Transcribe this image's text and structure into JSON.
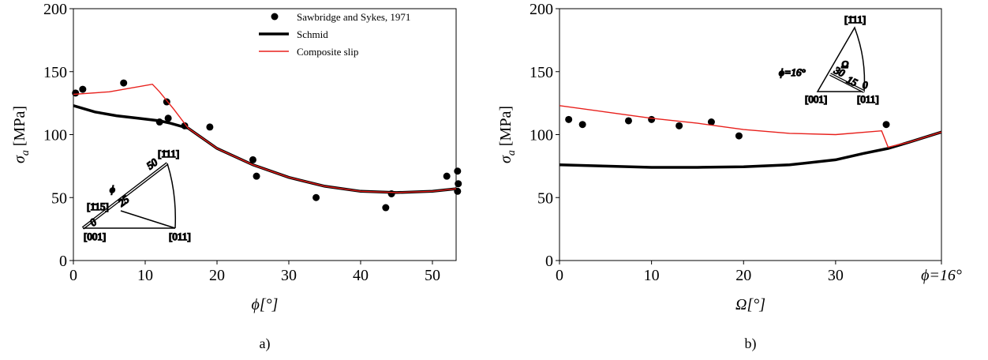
{
  "chart_data": [
    {
      "type": "scatter",
      "caption": "a)",
      "xlabel": "ϕ[°]",
      "ylabel_symbol": "σ",
      "ylabel_subscript": "a",
      "ylabel_unit": "[MPa]",
      "xlim": [
        0,
        53.3
      ],
      "ylim": [
        0,
        200
      ],
      "xticks": [
        0,
        10,
        20,
        30,
        40,
        50
      ],
      "yticks": [
        0,
        50,
        100,
        150,
        200
      ],
      "legend": "upper right",
      "series": [
        {
          "name": "Sawbridge and Sykes, 1971",
          "mode": "markers",
          "color": "#000000",
          "x": [
            0.3,
            1.3,
            7,
            12,
            13,
            13.2,
            15.5,
            19,
            25,
            25.5,
            33.8,
            43.5,
            44.3,
            52,
            53.5,
            53.5,
            53.6
          ],
          "values": [
            133,
            136,
            141,
            110,
            126,
            113,
            107,
            106,
            80,
            67,
            50,
            42,
            53,
            67,
            71,
            55,
            61
          ]
        },
        {
          "name": "Schmid",
          "mode": "lines",
          "color": "#000000",
          "x": [
            0,
            3,
            6,
            9,
            12,
            13.5,
            16,
            20,
            25,
            30,
            35,
            40,
            45,
            50,
            53.3
          ],
          "values": [
            123,
            118,
            115,
            113,
            111,
            109,
            105,
            89,
            76,
            66,
            59,
            55,
            54,
            55,
            57
          ]
        },
        {
          "name": "Composite slip",
          "mode": "lines",
          "color": "#e8201c",
          "x": [
            0,
            5,
            11,
            12,
            14,
            16,
            20,
            25,
            30,
            35,
            40,
            45,
            50,
            53.3
          ],
          "values": [
            132,
            134,
            140,
            134,
            120,
            105,
            89,
            76,
            66,
            59,
            55,
            54,
            55,
            57
          ]
        }
      ],
      "inset_labels": [
        "[1̄11]",
        "[1̄15]",
        "[001]",
        "[011]",
        "ϕ",
        "25",
        "50",
        "0"
      ]
    },
    {
      "type": "scatter",
      "caption": "b)",
      "xlabel": "Ω[°]",
      "ylabel_symbol": "σ",
      "ylabel_subscript": "a",
      "ylabel_unit": "[MPa]",
      "xlim": [
        0,
        41.5
      ],
      "ylim": [
        0,
        200
      ],
      "xticks": [
        0,
        10,
        20,
        30,
        {
          "value": 41.5,
          "label": "ϕ=16°"
        }
      ],
      "yticks": [
        0,
        50,
        100,
        150,
        200
      ],
      "series": [
        {
          "mode": "markers",
          "color": "#000000",
          "x": [
            1,
            2.5,
            7.5,
            10,
            13,
            16.5,
            19.5,
            35.5
          ],
          "values": [
            112,
            108,
            111,
            112,
            107,
            110,
            99,
            108
          ]
        },
        {
          "mode": "lines",
          "color": "#000000",
          "x": [
            0,
            5,
            10,
            15,
            20,
            25,
            30,
            33,
            35.7,
            38,
            41.5
          ],
          "values": [
            76,
            75,
            74,
            74,
            74.5,
            76,
            80,
            85,
            89,
            94,
            102
          ]
        },
        {
          "mode": "lines",
          "color": "#e8201c",
          "x": [
            0,
            5,
            10,
            15,
            20,
            25,
            30,
            35,
            35.7,
            38,
            41.5
          ],
          "values": [
            123,
            118,
            113,
            109,
            104,
            101,
            100,
            103,
            90,
            94,
            102
          ]
        }
      ],
      "inset_labels": [
        "[1̄11]",
        "ϕ=16°",
        "30",
        "Ω",
        "15",
        "0",
        "[001]",
        "[011]"
      ]
    }
  ]
}
